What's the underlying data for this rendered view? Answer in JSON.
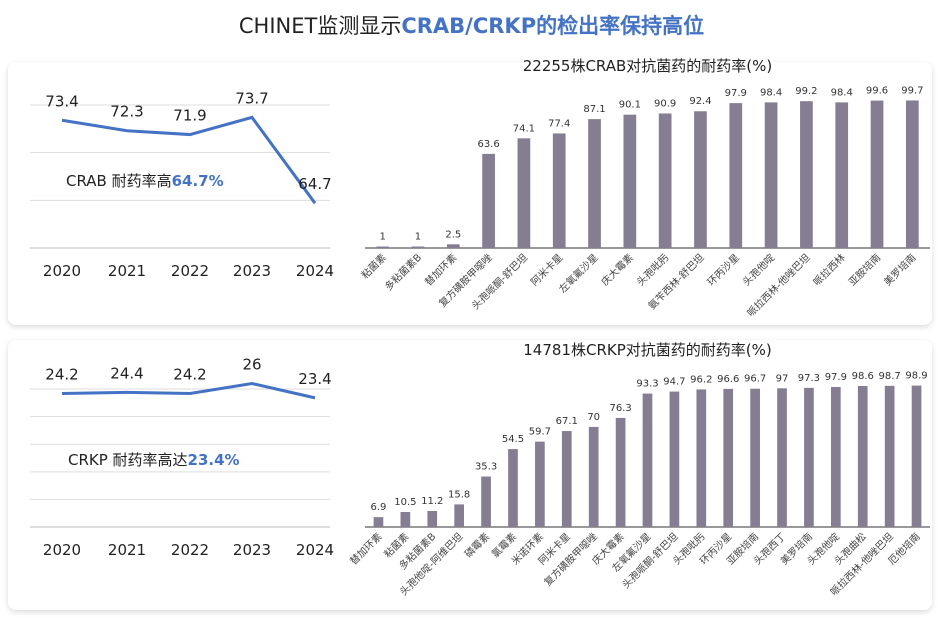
{
  "title": {
    "prefix": "CHINET监测显示",
    "highlight": "CRAB/CRKP的检出率保持高位"
  },
  "accent": "#4472c4",
  "bar_color": "#857e93",
  "chart_data": [
    {
      "type": "line",
      "x": [
        "2020",
        "2021",
        "2022",
        "2023",
        "2024"
      ],
      "values": [
        73.4,
        72.3,
        71.9,
        73.7,
        64.7
      ],
      "ylim": [
        60,
        75
      ],
      "grid": true,
      "annotation": {
        "text": "CRAB 耐药率高",
        "value": "64.7%"
      }
    },
    {
      "type": "bar",
      "title": "22255株CRAB对抗菌药的耐药率(%)",
      "categories": [
        "粘菌素",
        "多粘菌素B",
        "替加环素",
        "复方磺胺甲噁唑",
        "头孢哌酮-舒巴坦",
        "阿米卡星",
        "左氧氟沙星",
        "庆大霉素",
        "头孢吡肟",
        "氨苄西林-舒巴坦",
        "环丙沙星",
        "头孢他啶",
        "哌拉西林-他唑巴坦",
        "哌拉西林",
        "亚胺培南",
        "美罗培南"
      ],
      "values": [
        1,
        1,
        2.5,
        63.6,
        74.1,
        77.4,
        87.1,
        90.1,
        90.9,
        92.4,
        97.9,
        98.4,
        99.2,
        98.4,
        99.6,
        99.7
      ],
      "ylim": [
        0,
        100
      ]
    },
    {
      "type": "line",
      "x": [
        "2020",
        "2021",
        "2022",
        "2023",
        "2024"
      ],
      "values": [
        24.2,
        24.4,
        24.2,
        26,
        23.4
      ],
      "ylim": [
        0,
        27
      ],
      "grid": true,
      "annotation": {
        "text": "CRKP 耐药率高达",
        "value": "23.4%"
      }
    },
    {
      "type": "bar",
      "title": "14781株CRKP对抗菌药的耐药率(%)",
      "categories": [
        "替加环素",
        "粘菌素",
        "多粘菌素B",
        "头孢他啶-阿维巴坦",
        "磷霉素",
        "氯霉素",
        "米诺环素",
        "阿米卡星",
        "复方磺胺甲噁唑",
        "庆大霉素",
        "左氧氟沙星",
        "头孢哌酮-舒巴坦",
        "头孢吡肟",
        "环丙沙星",
        "亚胺培南",
        "头孢西丁",
        "美罗培南",
        "头孢他啶",
        "头孢曲松",
        "哌拉西林-他唑巴坦",
        "厄他培南"
      ],
      "values": [
        6.9,
        10.5,
        11.2,
        15.8,
        35.3,
        54.5,
        59.7,
        67.1,
        70,
        76.3,
        93.3,
        94.7,
        96.2,
        96.6,
        96.7,
        97,
        97.3,
        97.9,
        98.6,
        98.7,
        98.9
      ],
      "ylim": [
        0,
        100
      ]
    }
  ]
}
